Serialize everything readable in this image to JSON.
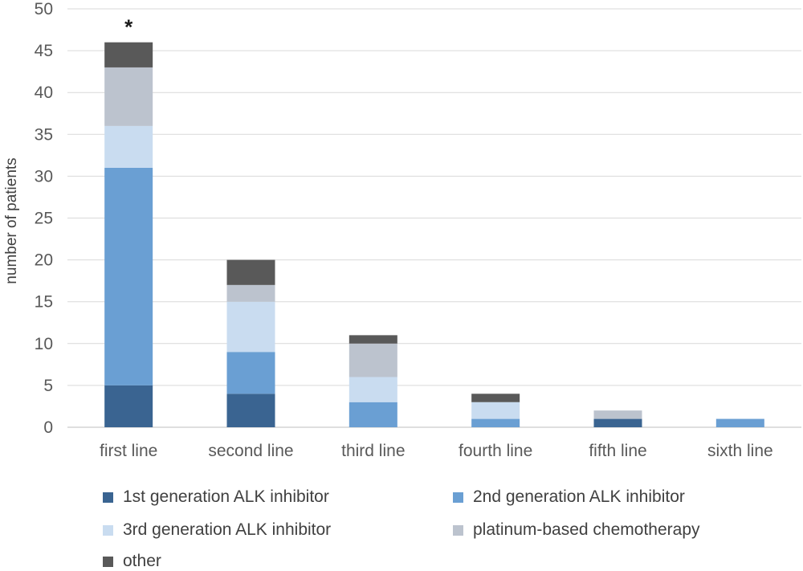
{
  "chart_data": {
    "type": "bar",
    "stacked": true,
    "categories": [
      "first line",
      "second line",
      "third line",
      "fourth line",
      "fifth line",
      "sixth line"
    ],
    "ylabel": "number of patients",
    "ylim": [
      0,
      50
    ],
    "yticks": [
      0,
      5,
      10,
      15,
      20,
      25,
      30,
      35,
      40,
      45,
      50
    ],
    "grid": true,
    "legend_position": "bottom",
    "series": [
      {
        "name": "1st generation ALK inhibitor",
        "color": "#3a6491",
        "values": [
          5,
          4,
          0,
          0,
          1,
          0
        ]
      },
      {
        "name": "2nd generation ALK inhibitor",
        "color": "#6a9fd3",
        "values": [
          26,
          5,
          3,
          1,
          0,
          1
        ]
      },
      {
        "name": "3rd generation ALK inhibitor",
        "color": "#c9dcf0",
        "values": [
          5,
          6,
          3,
          2,
          0,
          0
        ]
      },
      {
        "name": "platinum-based chemotherapy",
        "color": "#bcc3ce",
        "values": [
          7,
          2,
          4,
          0,
          1,
          0
        ]
      },
      {
        "name": "other",
        "color": "#595959",
        "values": [
          3,
          3,
          1,
          1,
          0,
          0
        ]
      }
    ],
    "annotations": [
      {
        "category": "first line",
        "text": "*"
      }
    ]
  }
}
